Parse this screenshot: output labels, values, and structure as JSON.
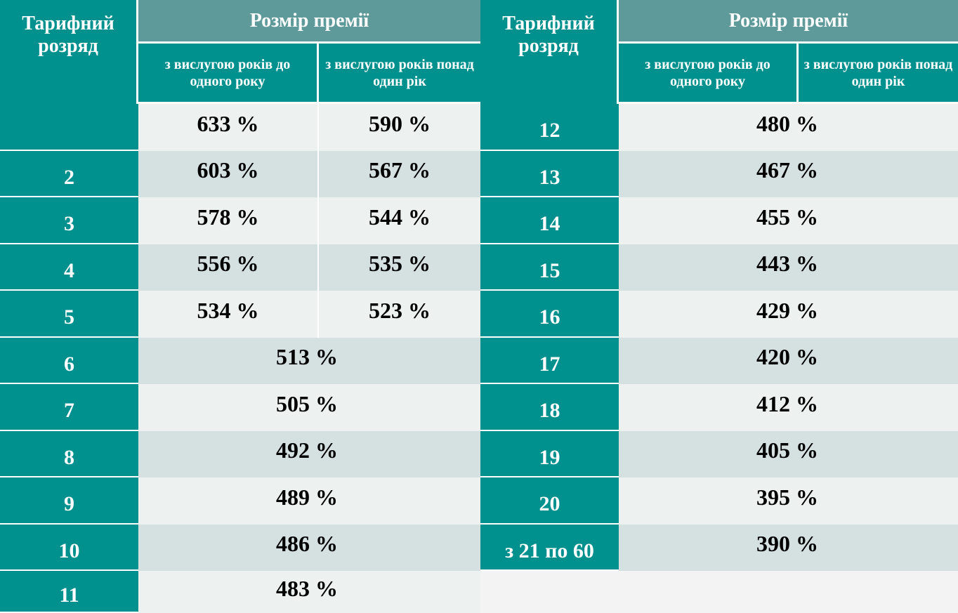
{
  "left": {
    "header": {
      "rank": "Тарифний розряд",
      "bonus": "Розмір премії",
      "sub1": "з вислугою років до одного року",
      "sub2": "з вислугою років понад один рік"
    },
    "rows": [
      {
        "rank": "",
        "v1": "633 %",
        "v2": "590 %"
      },
      {
        "rank": "2",
        "v1": "603 %",
        "v2": "567 %"
      },
      {
        "rank": "3",
        "v1": "578 %",
        "v2": "544 %"
      },
      {
        "rank": "4",
        "v1": "556 %",
        "v2": "535 %"
      },
      {
        "rank": "5",
        "v1": "534 %",
        "v2": "523 %"
      },
      {
        "rank": "6",
        "v": "513 %"
      },
      {
        "rank": "7",
        "v": "505 %"
      },
      {
        "rank": "8",
        "v": "492 %"
      },
      {
        "rank": "9",
        "v": "489 %"
      },
      {
        "rank": "10",
        "v": "486 %"
      },
      {
        "rank": "11",
        "v": "483 %"
      }
    ]
  },
  "right": {
    "header": {
      "rank": "Тарифний розряд",
      "bonus": "Розмір премії",
      "sub1": "з вислугою років до одного року",
      "sub2": "з вислугою років понад один рік"
    },
    "rows": [
      {
        "rank": "12",
        "v": "480 %"
      },
      {
        "rank": "13",
        "v": "467 %"
      },
      {
        "rank": "14",
        "v": "455 %"
      },
      {
        "rank": "15",
        "v": "443 %"
      },
      {
        "rank": "16",
        "v": "429 %"
      },
      {
        "rank": "17",
        "v": "420 %"
      },
      {
        "rank": "18",
        "v": "412 %"
      },
      {
        "rank": "19",
        "v": "405 %"
      },
      {
        "rank": "20",
        "v": "395 %"
      },
      {
        "rank": "з 21 по 60",
        "v": "390 %"
      }
    ]
  }
}
